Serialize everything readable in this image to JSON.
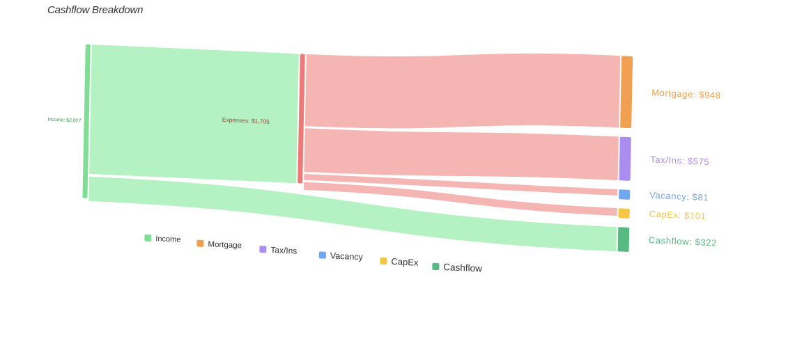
{
  "chart_data": {
    "type": "sankey",
    "title": "Cashflow Breakdown",
    "colors": {
      "Income": "#7fde94",
      "Mortgage": "#f0a050",
      "Tax/Ins": "#a98ef0",
      "Vacancy": "#6fa6f0",
      "CapEx": "#f5c64a",
      "Cashflow": "#55bb80",
      "Expenses": "#ec7b78",
      "income_link": "#b5f2c3",
      "expense_link": "#f4b5b3"
    },
    "nodes": [
      {
        "id": "income",
        "name": "Income",
        "value": 2027,
        "label": "Income: $2,027"
      },
      {
        "id": "expenses",
        "name": "Expenses",
        "value": 1705,
        "label": "Expenses: $1,705"
      },
      {
        "id": "mortgage",
        "name": "Mortgage",
        "value": 948,
        "label": "Mortgage: $948"
      },
      {
        "id": "taxins",
        "name": "Tax/Ins",
        "value": 575,
        "label": "Tax/Ins: $575"
      },
      {
        "id": "vacancy",
        "name": "Vacancy",
        "value": 81,
        "label": "Vacancy: $81"
      },
      {
        "id": "capex",
        "name": "CapEx",
        "value": 101,
        "label": "CapEx: $101"
      },
      {
        "id": "cashflow",
        "name": "Cashflow",
        "value": 322,
        "label": "Cashflow: $322"
      }
    ],
    "links": [
      {
        "source": "income",
        "target": "expenses",
        "value": 1705
      },
      {
        "source": "income",
        "target": "cashflow",
        "value": 322
      },
      {
        "source": "expenses",
        "target": "mortgage",
        "value": 948
      },
      {
        "source": "expenses",
        "target": "taxins",
        "value": 575
      },
      {
        "source": "expenses",
        "target": "vacancy",
        "value": 81
      },
      {
        "source": "expenses",
        "target": "capex",
        "value": 101
      }
    ],
    "legend": {
      "placement": "bottom-center",
      "items": [
        "Income",
        "Mortgage",
        "Tax/Ins",
        "Vacancy",
        "CapEx",
        "Cashflow"
      ]
    }
  }
}
